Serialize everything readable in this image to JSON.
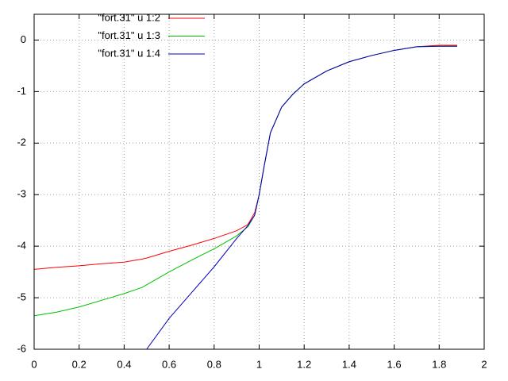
{
  "chart_data": {
    "type": "line",
    "x": [
      0,
      0.1,
      0.2,
      0.3,
      0.4,
      0.48,
      0.5,
      0.6,
      0.7,
      0.8,
      0.9,
      0.95,
      0.98,
      1.0,
      1.02,
      1.05,
      1.1,
      1.15,
      1.2,
      1.3,
      1.4,
      1.5,
      1.6,
      1.7,
      1.8,
      1.88
    ],
    "series": [
      {
        "name": "\"fort.31\" u 1:2",
        "color": "#ff0000",
        "values": [
          -4.45,
          -4.41,
          -4.38,
          -4.34,
          -4.31,
          -4.25,
          -4.23,
          -4.1,
          -3.98,
          -3.85,
          -3.7,
          -3.58,
          -3.35,
          -3.0,
          -2.5,
          -1.8,
          -1.3,
          -1.05,
          -0.85,
          -0.6,
          -0.42,
          -0.3,
          -0.2,
          -0.13,
          -0.1,
          -0.1
        ]
      },
      {
        "name": "\"fort.31\" u 1:3",
        "color": "#00c000",
        "values": [
          -5.35,
          -5.28,
          -5.18,
          -5.05,
          -4.92,
          -4.8,
          -4.75,
          -4.5,
          -4.27,
          -4.05,
          -3.8,
          -3.62,
          -3.4,
          -3.0,
          -2.5,
          -1.8,
          -1.3,
          -1.05,
          -0.85,
          -0.6,
          -0.42,
          -0.3,
          -0.2,
          -0.13,
          -0.12,
          -0.12
        ]
      },
      {
        "name": "\"fort.31\" u 1:4",
        "color": "#0000c0",
        "values": [
          null,
          null,
          null,
          null,
          null,
          null,
          -6,
          -5.4,
          -4.9,
          -4.4,
          -3.85,
          -3.6,
          -3.4,
          -3.0,
          -2.5,
          -1.8,
          -1.3,
          -1.05,
          -0.85,
          -0.6,
          -0.42,
          -0.3,
          -0.2,
          -0.13,
          -0.12,
          -0.12
        ]
      }
    ],
    "xlim": [
      0,
      2
    ],
    "xticks": [
      0,
      0.2,
      0.4,
      0.6,
      0.8,
      1,
      1.2,
      1.4,
      1.6,
      1.8,
      2
    ],
    "ylim": [
      -6,
      0.5
    ],
    "yticks": [
      0,
      -1,
      -2,
      -3,
      -4,
      -5,
      -6
    ],
    "grid": true,
    "legend": "top-left"
  }
}
